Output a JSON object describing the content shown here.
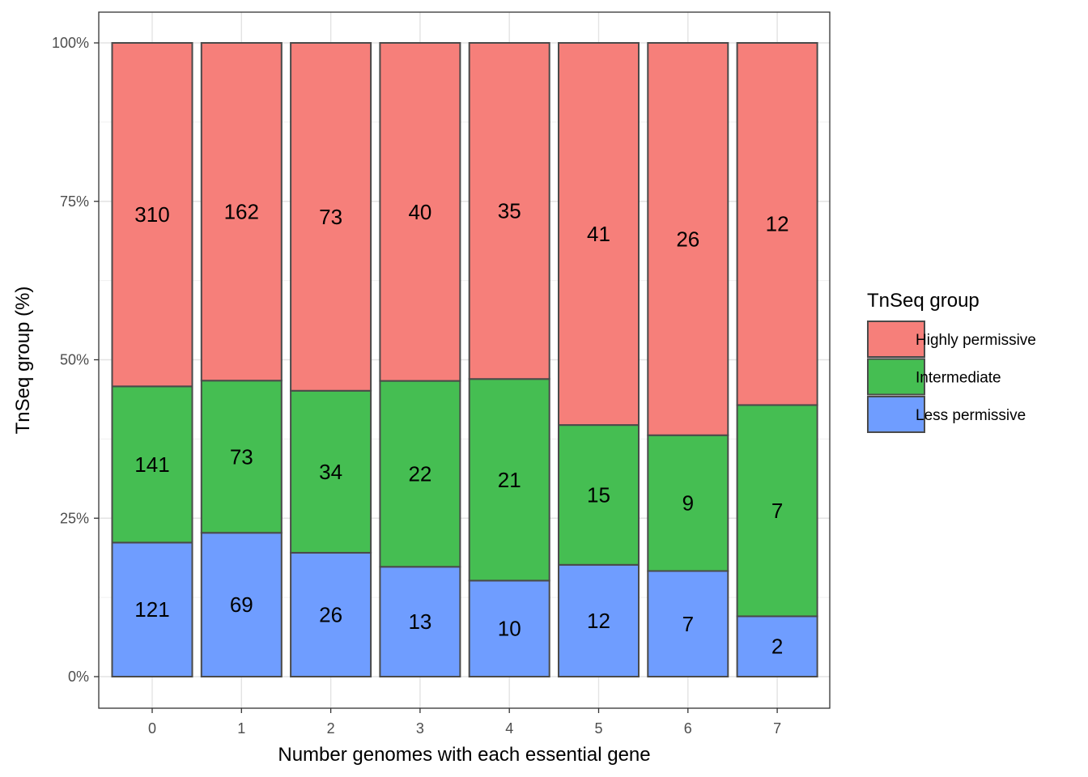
{
  "chart_data": {
    "type": "bar",
    "stacked": "percent",
    "xlabel": "Number genomes with each essential gene",
    "ylabel": "TnSeq group (%)",
    "categories": [
      "0",
      "1",
      "2",
      "3",
      "4",
      "5",
      "6",
      "7"
    ],
    "y_ticks": [
      "0%",
      "25%",
      "50%",
      "75%",
      "100%"
    ],
    "ylim": [
      0,
      100
    ],
    "grid": true,
    "legend": {
      "title": "TnSeq group",
      "position": "right"
    },
    "series": [
      {
        "name": "Less permissive",
        "color": "#6f9dff",
        "values": [
          121,
          69,
          26,
          13,
          10,
          12,
          7,
          2
        ]
      },
      {
        "name": "Intermediate",
        "color": "#45be52",
        "values": [
          141,
          73,
          34,
          22,
          21,
          15,
          9,
          7
        ]
      },
      {
        "name": "Highly permissive",
        "color": "#f67f7a",
        "values": [
          310,
          162,
          73,
          40,
          35,
          41,
          26,
          12
        ]
      }
    ],
    "legend_order": [
      "Highly permissive",
      "Intermediate",
      "Less permissive"
    ]
  }
}
